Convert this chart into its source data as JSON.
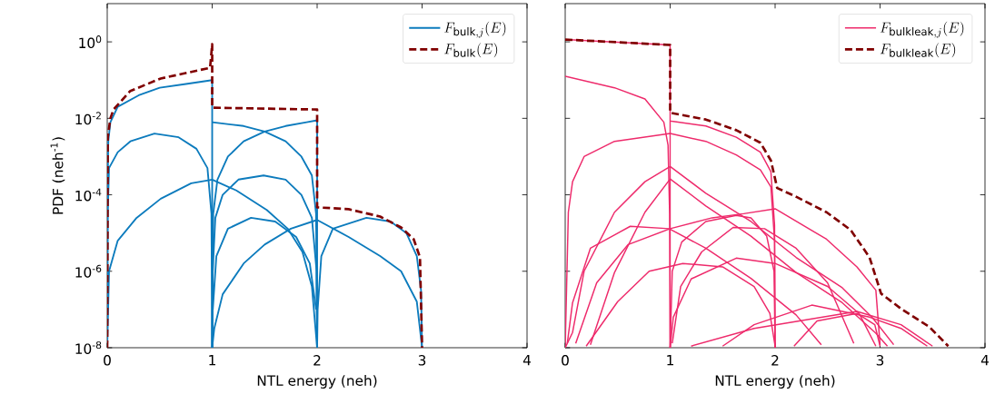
{
  "chart_data": [
    {
      "type": "line",
      "xlabel": "NTL energy (neh)",
      "ylabel": "PDF (neh$^{-1}$)",
      "log": "y",
      "legend": "top right",
      "xlim": [
        0,
        4
      ],
      "xticks": [
        0,
        1,
        2,
        3,
        4
      ],
      "ylim": [
        1e-08,
        10
      ],
      "yticks": [
        {
          "value": 1e-08,
          "label": "10$^{-8}$"
        },
        {
          "value": 1e-06,
          "label": "10$^{-6}$"
        },
        {
          "value": 0.0001,
          "label": "10$^{-4}$"
        },
        {
          "value": 0.01,
          "label": "10$^{-2}$"
        },
        {
          "value": 1,
          "label": "10$^{0}$"
        }
      ],
      "series": [
        {
          "name": "F_{\\mathrm{bulk},j}(E)",
          "color": "#0c7bbd",
          "x": [
            0,
            0.003,
            0.01,
            0.03,
            0.1,
            0.3,
            0.5,
            0.75,
            1.0,
            1.0
          ],
          "values": [
            1e-08,
            0.0001,
            0.0025,
            0.0079,
            0.02,
            0.04,
            0.063,
            0.079,
            0.1,
            1e-08
          ]
        },
        {
          "color": "#0c7bbd",
          "x": [
            0,
            0.005,
            0.017,
            0.1,
            0.22,
            0.45,
            0.68,
            0.85,
            0.955,
            0.993,
            1.0
          ],
          "values": [
            1e-08,
            3.2e-05,
            0.0005,
            0.0013,
            0.0025,
            0.004,
            0.0032,
            0.0016,
            0.0005,
            3.2e-05,
            1e-08
          ]
        },
        {
          "color": "#0c7bbd",
          "x": [
            0,
            0.017,
            0.1,
            0.28,
            0.51,
            0.8,
            1.0,
            1.23,
            1.52,
            1.72,
            1.86,
            1.95,
            2.0
          ],
          "values": [
            1e-08,
            1e-06,
            6.3e-06,
            2.5e-05,
            7.9e-05,
            0.0002,
            0.00025,
            0.00013,
            4e-05,
            1.3e-05,
            3.2e-06,
            4e-07,
            1e-08
          ]
        },
        {
          "color": "#0c7bbd",
          "x": [
            1.001,
            1.005,
            1.03,
            1.1,
            1.25,
            1.49,
            1.7,
            1.85,
            1.95,
            1.995,
            1.999
          ],
          "values": [
            1e-08,
            1e-06,
            2.5e-05,
            0.0001,
            0.00025,
            0.00032,
            0.00025,
            0.0001,
            2.5e-05,
            1e-06,
            1e-08
          ]
        },
        {
          "color": "#0c7bbd",
          "x": [
            1.0,
            1.3,
            1.5,
            1.7,
            1.85,
            1.95,
            1.99,
            2.0
          ],
          "values": [
            0.0079,
            0.0063,
            0.0045,
            0.0025,
            0.001,
            0.00032,
            3.2e-05,
            1e-08
          ]
        },
        {
          "color": "#0c7bbd",
          "x": [
            1.0,
            1.01,
            1.05,
            1.15,
            1.3,
            1.5,
            1.7,
            1.9,
            2.0,
            2.0
          ],
          "values": [
            1e-08,
            3.2e-05,
            0.00025,
            0.001,
            0.0025,
            0.0045,
            0.0063,
            0.0079,
            0.0089,
            1e-08
          ]
        },
        {
          "color": "#0c7bbd",
          "x": [
            1.006,
            1.04,
            1.15,
            1.37,
            1.6,
            1.8,
            1.93,
            1.99
          ],
          "values": [
            1e-07,
            2.5e-06,
            1.3e-05,
            2.5e-05,
            2e-05,
            7.9e-06,
            1.6e-06,
            1e-07
          ]
        },
        {
          "color": "#0c7bbd",
          "x": [
            1.0,
            1.02,
            1.1,
            1.3,
            1.5,
            1.75,
            2.0,
            2.3,
            2.6,
            2.8,
            2.95,
            3.0
          ],
          "values": [
            1e-08,
            3.2e-08,
            2.5e-07,
            1.6e-06,
            5e-06,
            1.3e-05,
            2.2e-05,
            7.9e-06,
            2.5e-06,
            1e-06,
            1.6e-07,
            1e-08
          ]
        },
        {
          "color": "#0c7bbd",
          "x": [
            2.0,
            2.005,
            2.04,
            2.15,
            2.47,
            2.7,
            2.85,
            2.95,
            2.99,
            3.0
          ],
          "values": [
            1e-08,
            1e-07,
            2.5e-06,
            1.3e-05,
            2.5e-05,
            2e-05,
            1e-05,
            2.5e-06,
            3.2e-07,
            1e-08
          ]
        },
        {
          "name": "F_{\\mathrm{bulk}}(E)",
          "color": "#800000",
          "line_style": "dashed",
          "x": [
            0,
            0.005,
            0.03,
            0.06,
            0.22,
            0.51,
            0.98,
            1.0,
            1.0,
            2.0,
            2.0,
            2.3,
            2.6,
            2.8,
            2.92,
            2.98,
            3.0
          ],
          "values": [
            1e-08,
            0.0032,
            0.01,
            0.017,
            0.052,
            0.11,
            0.21,
            0.87,
            0.019,
            0.017,
            4.7e-05,
            4.2e-05,
            2.7e-05,
            1.4e-05,
            6.9e-06,
            2.3e-06,
            1e-08
          ]
        }
      ]
    },
    {
      "type": "line",
      "xlabel": "NTL energy (neh)",
      "log": "y",
      "legend": "top right",
      "tick_labels": "x",
      "xlim": [
        0,
        4
      ],
      "xticks": [
        0,
        1,
        2,
        3,
        4
      ],
      "ylim": [
        1e-08,
        10
      ],
      "yticks": [
        {
          "value": 1e-08,
          "label": null
        },
        {
          "value": 1e-06,
          "label": null
        },
        {
          "value": 0.0001,
          "label": null
        },
        {
          "value": 0.01,
          "label": null
        },
        {
          "value": 1,
          "label": null
        }
      ],
      "series": [
        {
          "name": "F_{\\mathrm{bulkleak},j}(E)",
          "color": "#ee2a6b",
          "x": [
            0,
            1.0,
            1.0
          ],
          "values": [
            1.15,
            0.83,
            1e-08
          ]
        },
        {
          "color": "#ee2a6b",
          "x": [
            0,
            0.47,
            0.76,
            0.94,
            0.98,
            0.995,
            1.0
          ],
          "values": [
            0.126,
            0.063,
            0.032,
            0.0079,
            0.002,
            3.2e-05,
            1e-08
          ]
        },
        {
          "color": "#ee2a6b",
          "x": [
            0,
            0.03,
            0.07,
            0.18,
            0.47,
            1.0,
            1.34,
            1.63,
            1.86,
            1.96,
            1.995,
            2.0
          ],
          "values": [
            1e-08,
            3.5e-05,
            0.00022,
            0.001,
            0.0025,
            0.004,
            0.0025,
            0.0011,
            0.00045,
            0.00016,
            6.3e-06,
            1e-08
          ]
        },
        {
          "color": "#ee2a6b",
          "x": [
            1.0,
            1.34,
            1.63,
            1.86,
            1.96,
            1.995,
            2.0
          ],
          "values": [
            0.0085,
            0.0063,
            0.0032,
            0.0013,
            0.0004,
            1.6e-05,
            1e-08
          ]
        },
        {
          "color": "#ee2a6b",
          "x": [
            0,
            0.07,
            0.18,
            0.47,
            0.76,
            1.0,
            1.34,
            1.77,
            2.2,
            2.64,
            2.93,
            3.13
          ],
          "values": [
            1e-08,
            2.5e-08,
            1e-06,
            3.5e-05,
            0.00022,
            0.00055,
            0.00011,
            2e-05,
            2.3e-06,
            3.7e-07,
            6e-08,
            1.2e-08
          ]
        },
        {
          "color": "#ee2a6b",
          "x": [
            0.24,
            0.47,
            0.76,
            1.0,
            1.34,
            1.77,
            2.2,
            2.64,
            2.96,
            3.07
          ],
          "values": [
            1.2e-08,
            9.3e-07,
            3.5e-05,
            0.00026,
            5.1e-05,
            8.3e-06,
            9.3e-07,
            1.5e-07,
            2.4e-08,
            1.1e-08
          ]
        },
        {
          "color": "#ee2a6b",
          "x": [
            0.02,
            0.07,
            0.24,
            0.62,
            0.99,
            1.34,
            1.77,
            2.2,
            2.44
          ],
          "values": [
            1.3e-08,
            1.5e-07,
            4e-06,
            1.5e-05,
            1.3e-05,
            4e-06,
            6.5e-07,
            7.2e-08,
            1.2e-08
          ]
        },
        {
          "color": "#ee2a6b",
          "x": [
            0.1,
            0.3,
            0.6,
            1.0,
            1.4,
            1.7,
            2.0,
            2.49,
            2.78,
            2.96,
            3.0
          ],
          "values": [
            1.3e-08,
            5e-07,
            5e-06,
            1.3e-05,
            2.5e-05,
            3.2e-05,
            4.3e-05,
            6.9e-06,
            1.3e-06,
            3.2e-07,
            1.2e-08
          ]
        },
        {
          "color": "#ee2a6b",
          "x": [
            1.0,
            1.02,
            1.11,
            1.34,
            1.63,
            1.77,
            1.92,
            1.99,
            2.0
          ],
          "values": [
            1e-08,
            1e-06,
            5.8e-06,
            2e-05,
            2.9e-05,
            2.5e-05,
            8.3e-06,
            1e-06,
            1e-08
          ]
        },
        {
          "color": "#ee2a6b",
          "x": [
            1.02,
            1.1,
            1.3,
            1.6,
            1.9,
            2.2,
            2.5,
            2.75
          ],
          "values": [
            1.3e-08,
            4e-07,
            3.2e-06,
            1.4e-05,
            1.3e-05,
            4e-06,
            5e-07,
            1.3e-08
          ]
        },
        {
          "color": "#ee2a6b",
          "x": [
            0.2,
            0.5,
            0.8,
            1.12,
            1.5,
            1.8,
            1.95,
            2.0
          ],
          "values": [
            1.1e-08,
            1.6e-07,
            1e-06,
            1.6e-06,
            1.3e-06,
            4e-07,
            7.9e-08,
            1.1e-08
          ]
        },
        {
          "color": "#ee2a6b",
          "x": [
            1.0,
            1.03,
            1.2,
            1.63,
            2.0,
            2.5,
            2.8,
            2.96
          ],
          "values": [
            1e-08,
            6.3e-08,
            6.3e-07,
            2.2e-06,
            1.6e-06,
            4e-07,
            7.9e-08,
            1.1e-08
          ]
        },
        {
          "color": "#ee2a6b",
          "x": [
            1.5,
            1.8,
            2.35,
            2.9,
            3.2,
            3.45
          ],
          "values": [
            1.1e-08,
            4e-08,
            1.3e-07,
            6.3e-08,
            3.2e-08,
            1.1e-08
          ]
        },
        {
          "color": "#ee2a6b",
          "x": [
            1.2,
            1.8,
            2.78,
            3.2,
            3.5
          ],
          "values": [
            1.1e-08,
            3.2e-08,
            8.9e-08,
            4e-08,
            1.1e-08
          ]
        },
        {
          "color": "#ee2a6b",
          "x": [
            2.18,
            2.4,
            2.78,
            2.95,
            3.0
          ],
          "values": [
            1.1e-08,
            5e-08,
            7.9e-08,
            4e-08,
            1.1e-08
          ]
        },
        {
          "name": "F_{\\mathrm{bulkleak}}(E)",
          "color": "#800000",
          "line_style": "dashed",
          "x": [
            0,
            1.0,
            1.0,
            1.34,
            1.63,
            1.86,
            1.96,
            2.02,
            2.2,
            2.49,
            2.72,
            2.9,
            3.01,
            3.21,
            3.47,
            3.65
          ],
          "values": [
            1.15,
            0.83,
            0.014,
            0.0093,
            0.0049,
            0.0023,
            0.00079,
            0.00015,
            8.9e-05,
            3.5e-05,
            1.2e-05,
            2.3e-06,
            2.6e-07,
            1e-07,
            3.5e-08,
            1.1e-08
          ]
        }
      ]
    }
  ]
}
